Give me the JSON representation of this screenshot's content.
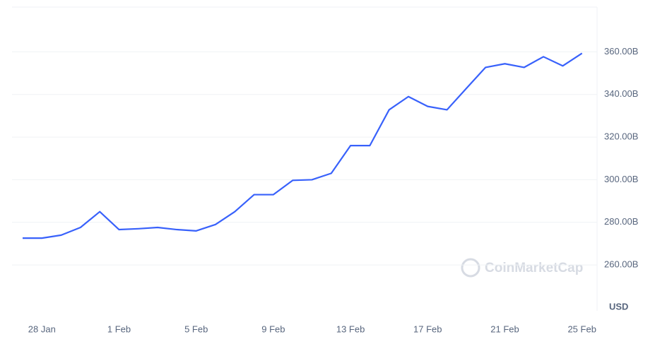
{
  "chart_data": {
    "type": "line",
    "x": [
      "27 Jan",
      "28 Jan",
      "29 Jan",
      "30 Jan",
      "31 Jan",
      "1 Feb",
      "2 Feb",
      "3 Feb",
      "4 Feb",
      "5 Feb",
      "6 Feb",
      "7 Feb",
      "8 Feb",
      "9 Feb",
      "10 Feb",
      "11 Feb",
      "12 Feb",
      "13 Feb",
      "14 Feb",
      "15 Feb",
      "16 Feb",
      "17 Feb",
      "18 Feb",
      "19 Feb",
      "20 Feb",
      "21 Feb",
      "22 Feb",
      "23 Feb",
      "24 Feb",
      "25 Feb"
    ],
    "series": [
      {
        "color": "#3861fb",
        "values": [
          272.6,
          272.6,
          274,
          277.6,
          285,
          276.6,
          277,
          277.6,
          276.6,
          276,
          279,
          285,
          293,
          293,
          299.7,
          300,
          303,
          316,
          316,
          332.8,
          339,
          334.4,
          332.8,
          342.8,
          352.7,
          354.4,
          352.7,
          357.7,
          353.4,
          359.3
        ]
      }
    ],
    "xticks": [
      "28 Jan",
      "1 Feb",
      "5 Feb",
      "9 Feb",
      "13 Feb",
      "17 Feb",
      "21 Feb",
      "25 Feb"
    ],
    "ylim": [
      238.5,
      381
    ],
    "yticks": [
      {
        "value": 260,
        "label": "260.00B"
      },
      {
        "value": 280,
        "label": "280.00B"
      },
      {
        "value": 300,
        "label": "300.00B"
      },
      {
        "value": 320,
        "label": "320.00B"
      },
      {
        "value": 340,
        "label": "340.00B"
      },
      {
        "value": 360,
        "label": "360.00B"
      }
    ],
    "y_unit": "USD",
    "watermark": "CoinMarketCap",
    "grid": true
  }
}
